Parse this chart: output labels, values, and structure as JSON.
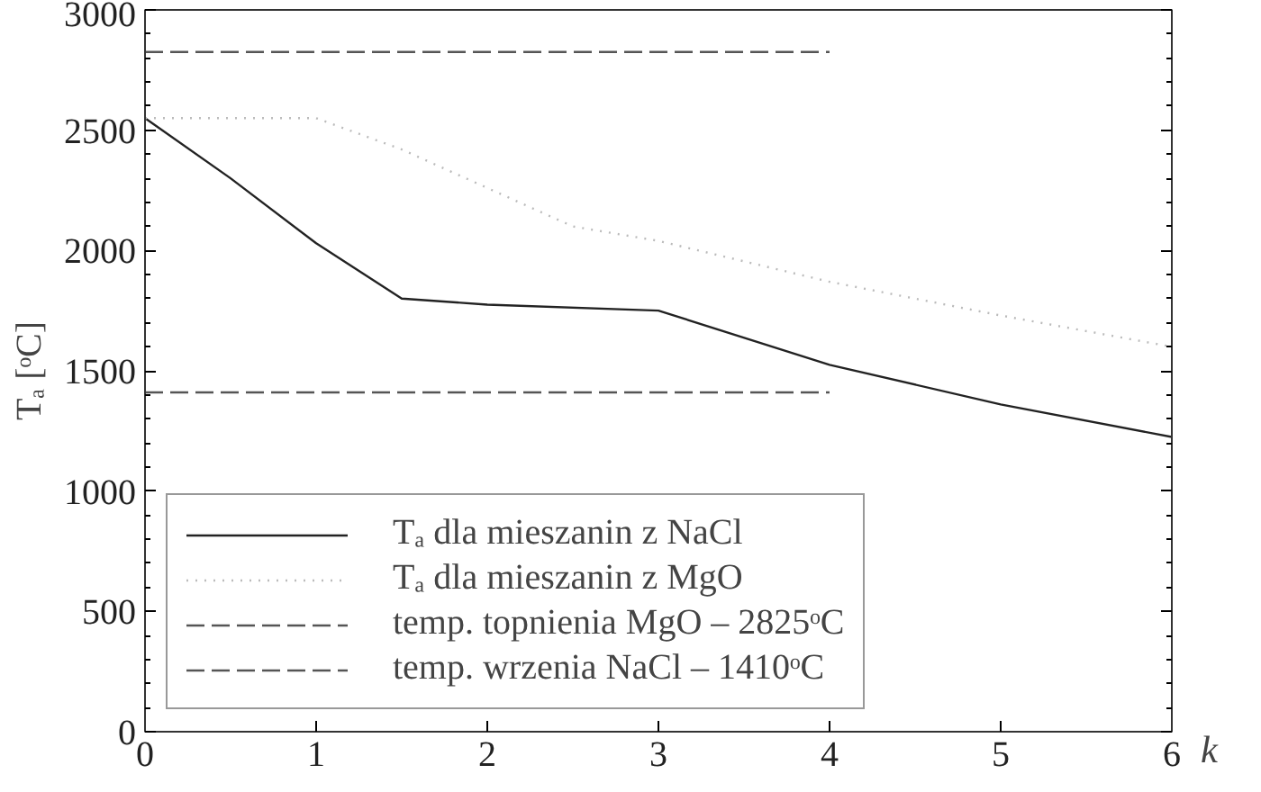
{
  "chart_data": {
    "type": "line",
    "xlabel": "k",
    "ylabel": "Tₐ [ᵒC]",
    "xlim": [
      0,
      6
    ],
    "ylim": [
      0,
      3000
    ],
    "xticks": [
      0,
      1,
      2,
      3,
      4,
      5,
      6
    ],
    "yticks": [
      0,
      500,
      1000,
      1500,
      2000,
      2500,
      3000
    ],
    "grid": false,
    "legend": "bottom left",
    "marker": "none",
    "series": [
      {
        "name": "Tₐ dla mieszanin z NaCl",
        "color": "#222222",
        "line_style": "solid",
        "x": [
          0,
          0.5,
          1,
          1.5,
          2,
          3,
          4,
          5,
          6
        ],
        "values": [
          2550,
          2300,
          2030,
          1800,
          1775,
          1750,
          1525,
          1360,
          1225
        ]
      },
      {
        "name": "Tₐ dla mieszanin z MgO",
        "color": "#bbbbbb",
        "line_style": "dotted",
        "x": [
          0,
          0.5,
          1,
          1.5,
          2,
          2.5,
          3,
          4,
          5,
          6
        ],
        "values": [
          2550,
          2550,
          2550,
          2420,
          2260,
          2100,
          2040,
          1870,
          1730,
          1600
        ]
      },
      {
        "name": "temp. topnienia MgO – 2825ᵒC",
        "color": "#555555",
        "line_style": "dashed",
        "x": [
          0,
          4
        ],
        "values": [
          2825,
          2825
        ]
      },
      {
        "name": "temp. wrzenia NaCl – 1410ᵒC",
        "color": "#555555",
        "line_style": "dashed",
        "x": [
          0,
          4
        ],
        "values": [
          1410,
          1410
        ]
      }
    ]
  }
}
